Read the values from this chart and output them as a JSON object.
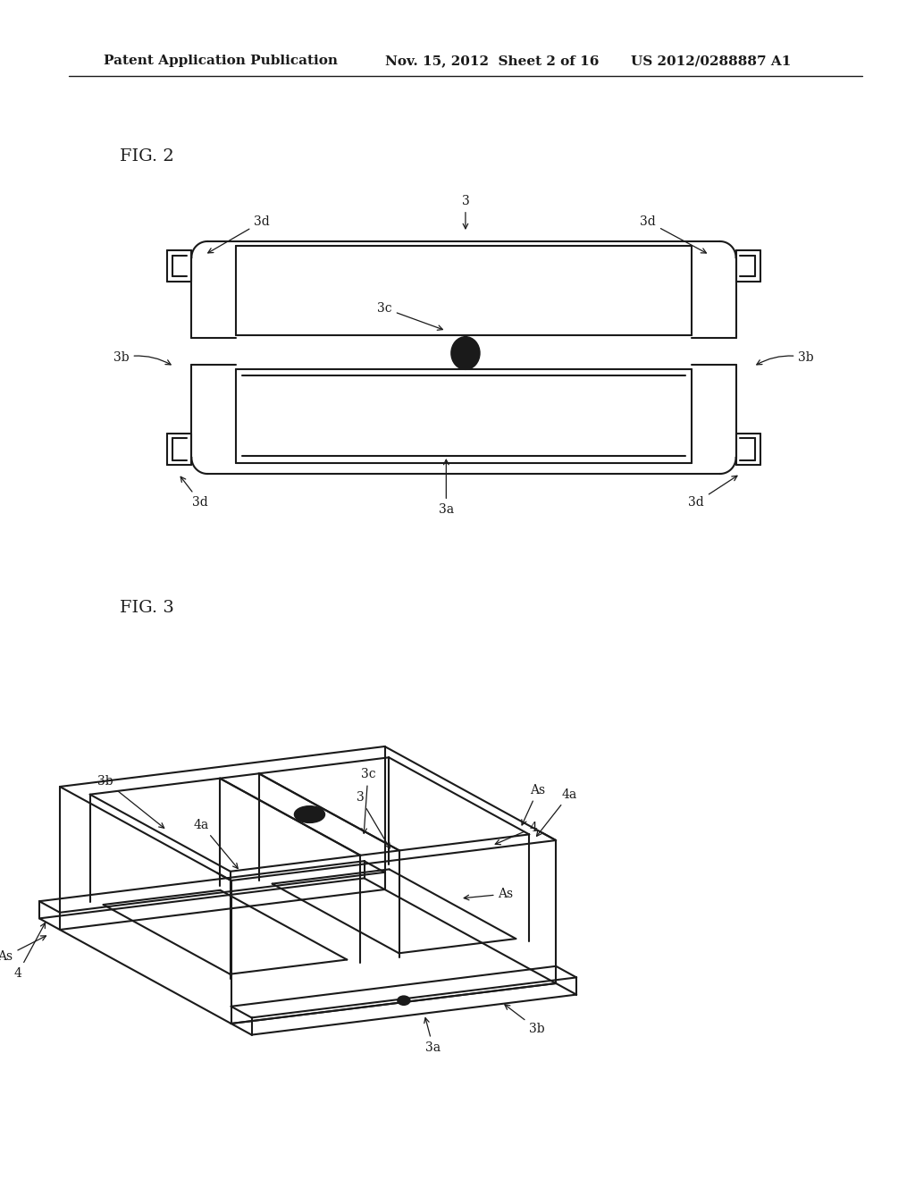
{
  "background_color": "#ffffff",
  "header_left": "Patent Application Publication",
  "header_mid": "Nov. 15, 2012  Sheet 2 of 16",
  "header_right": "US 2012/0288887 A1",
  "line_color": "#1a1a1a",
  "line_width": 1.5,
  "annotation_fontsize": 10,
  "fig_label_fontsize": 13
}
